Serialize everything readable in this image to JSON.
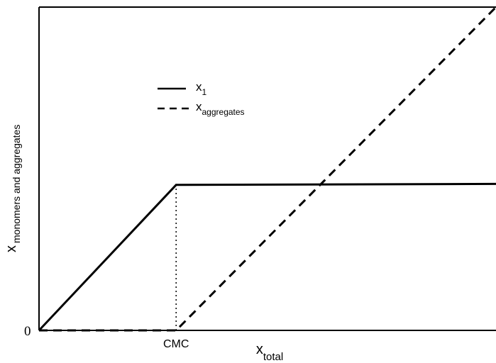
{
  "chart_data": {
    "type": "line",
    "xlabel": {
      "main": "x",
      "sub": "total"
    },
    "ylabel": {
      "main": "x",
      "sub": "monomers and aggregates"
    },
    "x_ticks": [
      {
        "x": 0.3,
        "label": "CMC"
      }
    ],
    "y_ticks": [
      {
        "y": 0,
        "label": "0"
      }
    ],
    "xlim": [
      0,
      1
    ],
    "ylim": [
      0,
      1
    ],
    "grid": false,
    "legend": "upper-left",
    "cmc_marker": {
      "x": 0.3,
      "style": "dotted"
    },
    "series": [
      {
        "name": "x",
        "name_sub": "1",
        "style": "solid",
        "points": [
          [
            0,
            0
          ],
          [
            0.3,
            0.45
          ],
          [
            1,
            0.453
          ]
        ]
      },
      {
        "name": "x",
        "name_sub": "aggregates",
        "style": "dashed",
        "points": [
          [
            0,
            0
          ],
          [
            0.3,
            0
          ],
          [
            1,
            1.0
          ]
        ]
      }
    ]
  }
}
